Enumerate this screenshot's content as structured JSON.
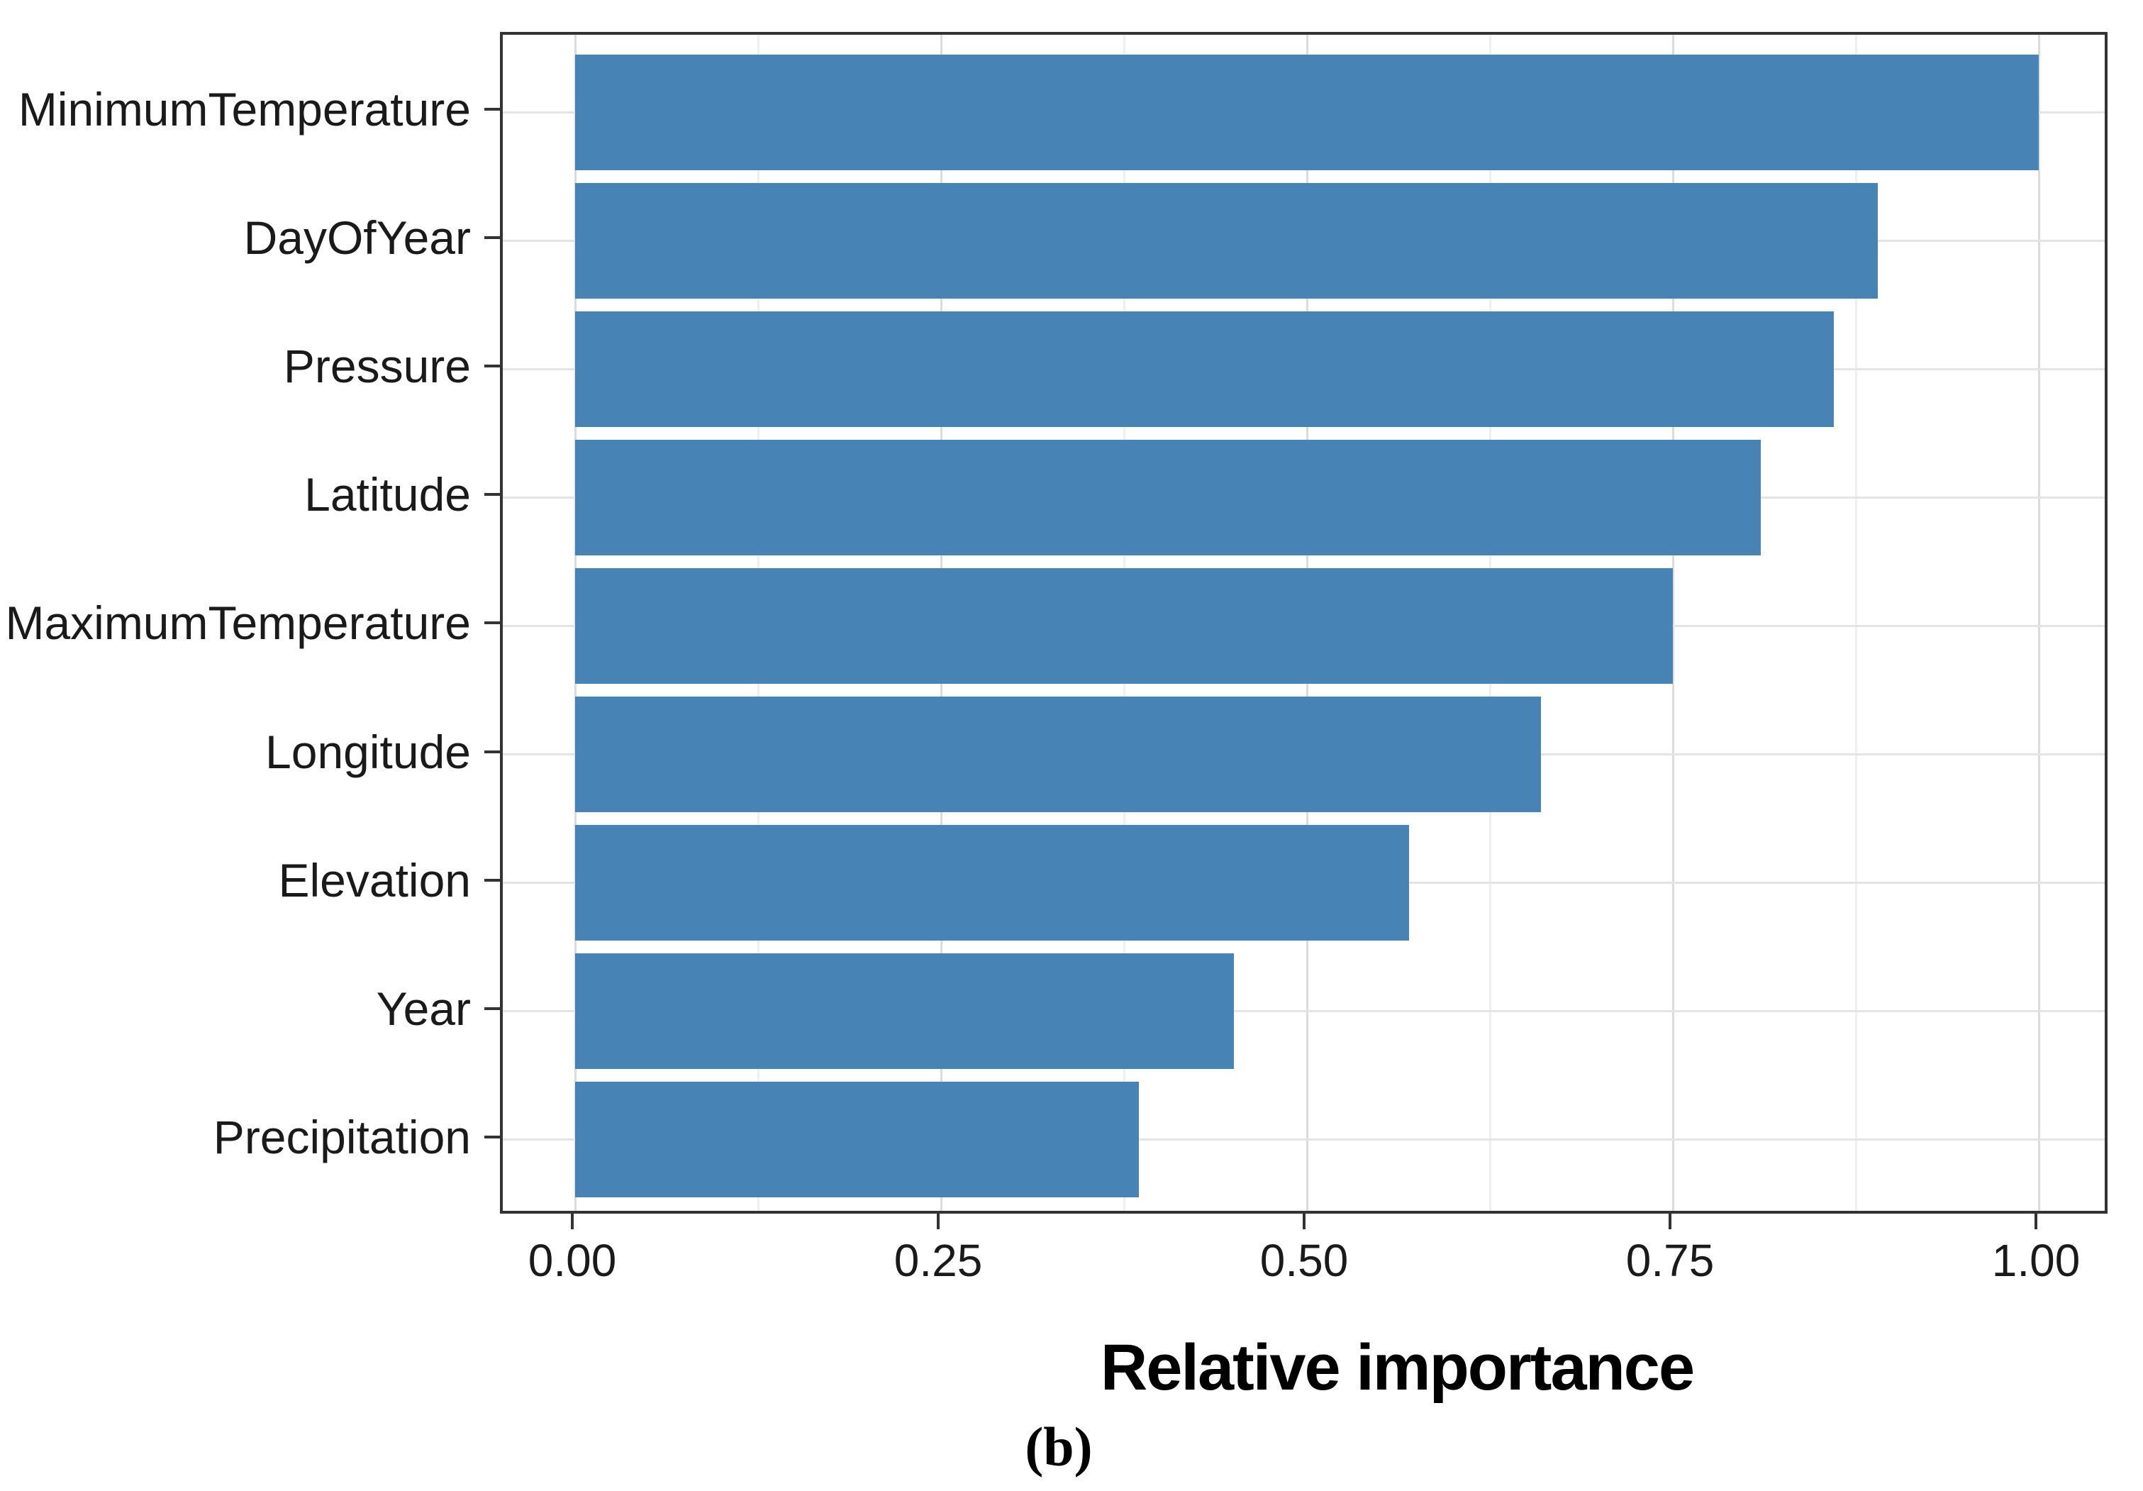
{
  "figure": {
    "panel_label": "(b)"
  },
  "chart_data": {
    "type": "bar",
    "orientation": "horizontal",
    "title": "",
    "xlabel": "Relative importance",
    "ylabel": "",
    "categories": [
      "MinimumTemperature",
      "DayOfYear",
      "Pressure",
      "Latitude",
      "MaximumTemperature",
      "Longitude",
      "Elevation",
      "Year",
      "Precipitation"
    ],
    "values": [
      1.0,
      0.89,
      0.86,
      0.81,
      0.75,
      0.66,
      0.57,
      0.45,
      0.385
    ],
    "xlim": [
      0,
      1
    ],
    "x_tick_labels": [
      "0.00",
      "0.25",
      "0.50",
      "0.75",
      "1.00"
    ],
    "x_tick_values": [
      0,
      0.25,
      0.5,
      0.75,
      1.0
    ],
    "x_minor_grid_values": [
      0.125,
      0.375,
      0.625,
      0.875
    ],
    "grid": "vertical major+minor, horizontal major per category",
    "legend_position": "none",
    "bar_color": "#4783b4",
    "panel_border_color": "#333333",
    "major_grid_color": "#dcdcdc",
    "minor_grid_color": "#efefef",
    "horizontal_grid_color": "#e4e4e4",
    "axis_text_color": "#1a1a1a"
  }
}
